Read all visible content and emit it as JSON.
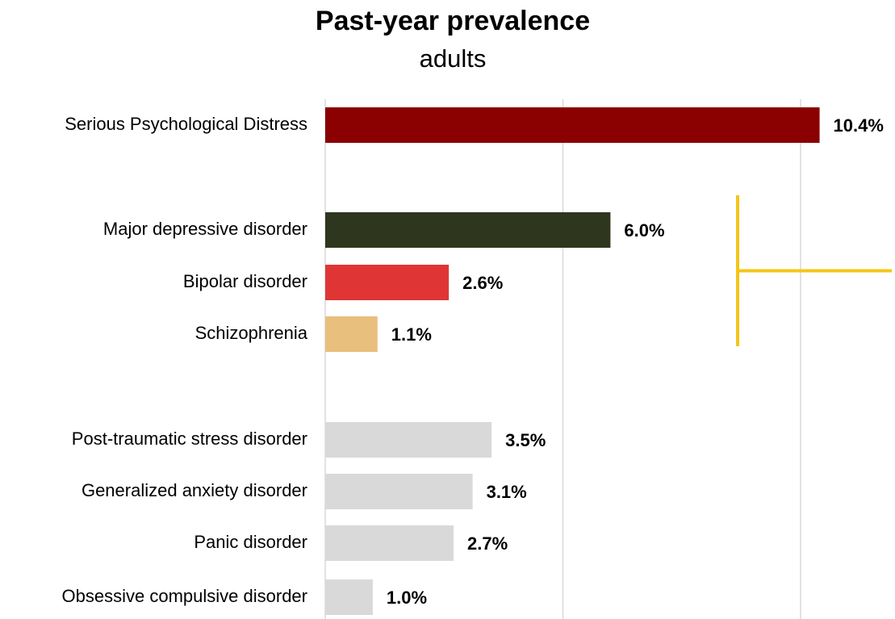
{
  "chart_data": {
    "type": "bar",
    "orientation": "horizontal",
    "title": "Past-year prevalence",
    "subtitle": "adults",
    "xlabel": "",
    "ylabel": "",
    "xlim": [
      0,
      12
    ],
    "grid": "vertical",
    "gridlines": [
      0,
      5,
      10
    ],
    "value_suffix": "%",
    "categories": [
      "Serious Psychological Distress",
      "Major depressive disorder",
      "Bipolar disorder",
      "Schizophrenia",
      "Post-traumatic stress disorder",
      "Generalized anxiety disorder",
      "Panic disorder",
      "Obsessive compulsive disorder"
    ],
    "values": [
      10.4,
      6.0,
      2.6,
      1.1,
      3.5,
      3.1,
      2.7,
      1.0
    ],
    "value_labels": [
      "10.4%",
      "6.0%",
      "2.6%",
      "1.1%",
      "3.5%",
      "3.1%",
      "2.7%",
      "1.0%"
    ],
    "groups": [
      [
        0
      ],
      [
        1,
        2,
        3
      ],
      [
        4,
        5,
        6,
        7
      ]
    ],
    "colors": [
      "#8b0000",
      "#2e361e",
      "#e03535",
      "#e8bf7c",
      "#d9d9d9",
      "#d9d9d9",
      "#d9d9d9",
      "#d9d9d9"
    ],
    "gridline_color": "#d9d9d9",
    "bracket": {
      "items": [
        1,
        2,
        3
      ],
      "color": "#f5c518"
    }
  }
}
